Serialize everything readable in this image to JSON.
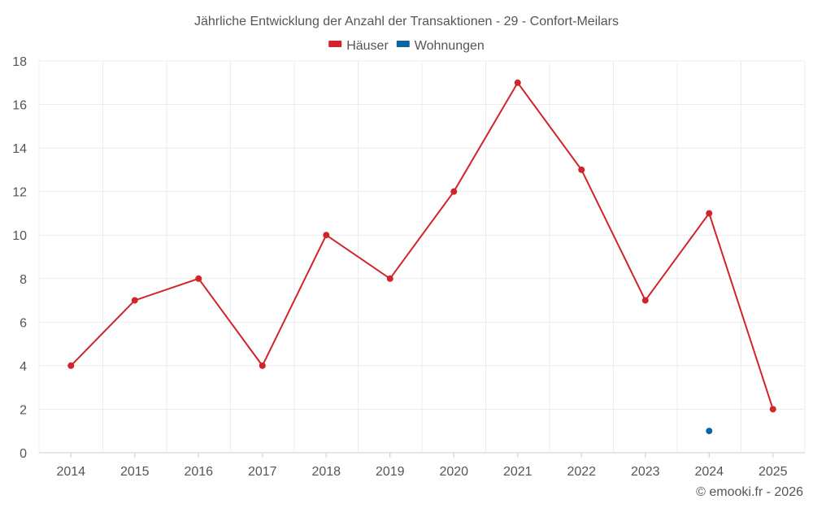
{
  "chart_data": {
    "type": "line",
    "title": "Jährliche Entwicklung der Anzahl der Transaktionen - 29 - Confort-Meilars",
    "categories": [
      "2014",
      "2015",
      "2016",
      "2017",
      "2018",
      "2019",
      "2020",
      "2021",
      "2022",
      "2023",
      "2024",
      "2025"
    ],
    "series": [
      {
        "name": "Häuser",
        "color": "#d0242b",
        "values": [
          4,
          7,
          8,
          4,
          10,
          8,
          12,
          17,
          13,
          7,
          11,
          2
        ]
      },
      {
        "name": "Wohnungen",
        "color": "#0a64a4",
        "values": [
          null,
          null,
          null,
          null,
          null,
          null,
          null,
          null,
          null,
          null,
          1,
          null
        ]
      }
    ],
    "ylim": [
      0,
      18
    ],
    "yticks": [
      0,
      2,
      4,
      6,
      8,
      10,
      12,
      14,
      16,
      18
    ],
    "xlabel": "",
    "ylabel": "",
    "grid": true,
    "legend": "top-center",
    "credit": "© emooki.fr - 2026"
  }
}
